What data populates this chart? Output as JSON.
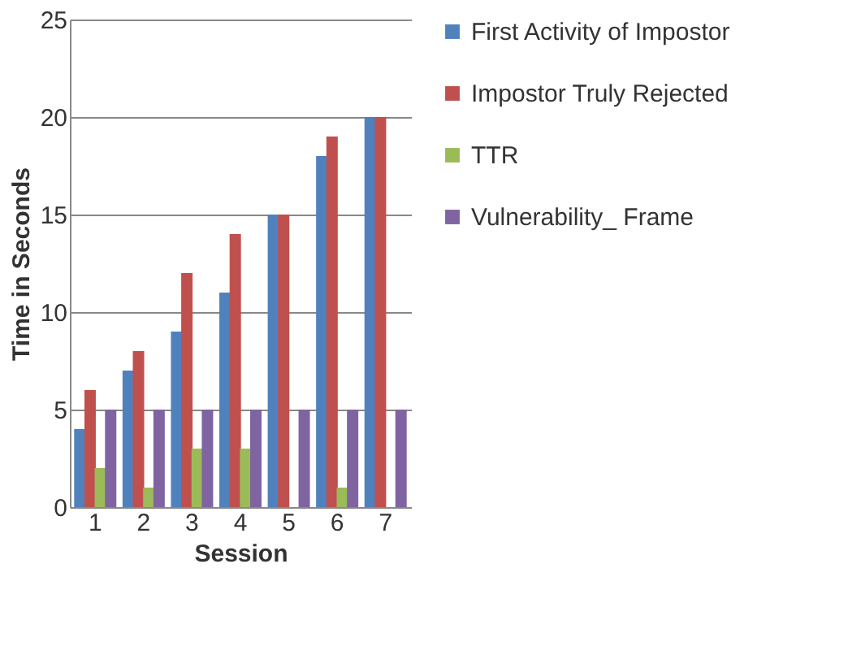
{
  "chart_data": {
    "type": "bar",
    "xlabel": "Session",
    "ylabel": "Time in Seconds",
    "categories": [
      "1",
      "2",
      "3",
      "4",
      "5",
      "6",
      "7"
    ],
    "series": [
      {
        "name": "First Activity of Impostor",
        "color": "#4f81bd",
        "values": [
          4,
          7,
          9,
          11,
          15,
          18,
          20
        ]
      },
      {
        "name": "Impostor Truly Rejected",
        "color": "#c0504d",
        "values": [
          6,
          8,
          12,
          14,
          15,
          19,
          20
        ]
      },
      {
        "name": "TTR",
        "color": "#9bbb59",
        "values": [
          2,
          1,
          3,
          3,
          0,
          1,
          0
        ]
      },
      {
        "name": "Vulnerability_ Frame",
        "color": "#8064a2",
        "values": [
          5,
          5,
          5,
          5,
          5,
          5,
          5
        ]
      }
    ],
    "ylim": [
      0,
      25
    ],
    "yticks": [
      0,
      5,
      10,
      15,
      20,
      25
    ],
    "grid": "y",
    "legend": "right"
  }
}
